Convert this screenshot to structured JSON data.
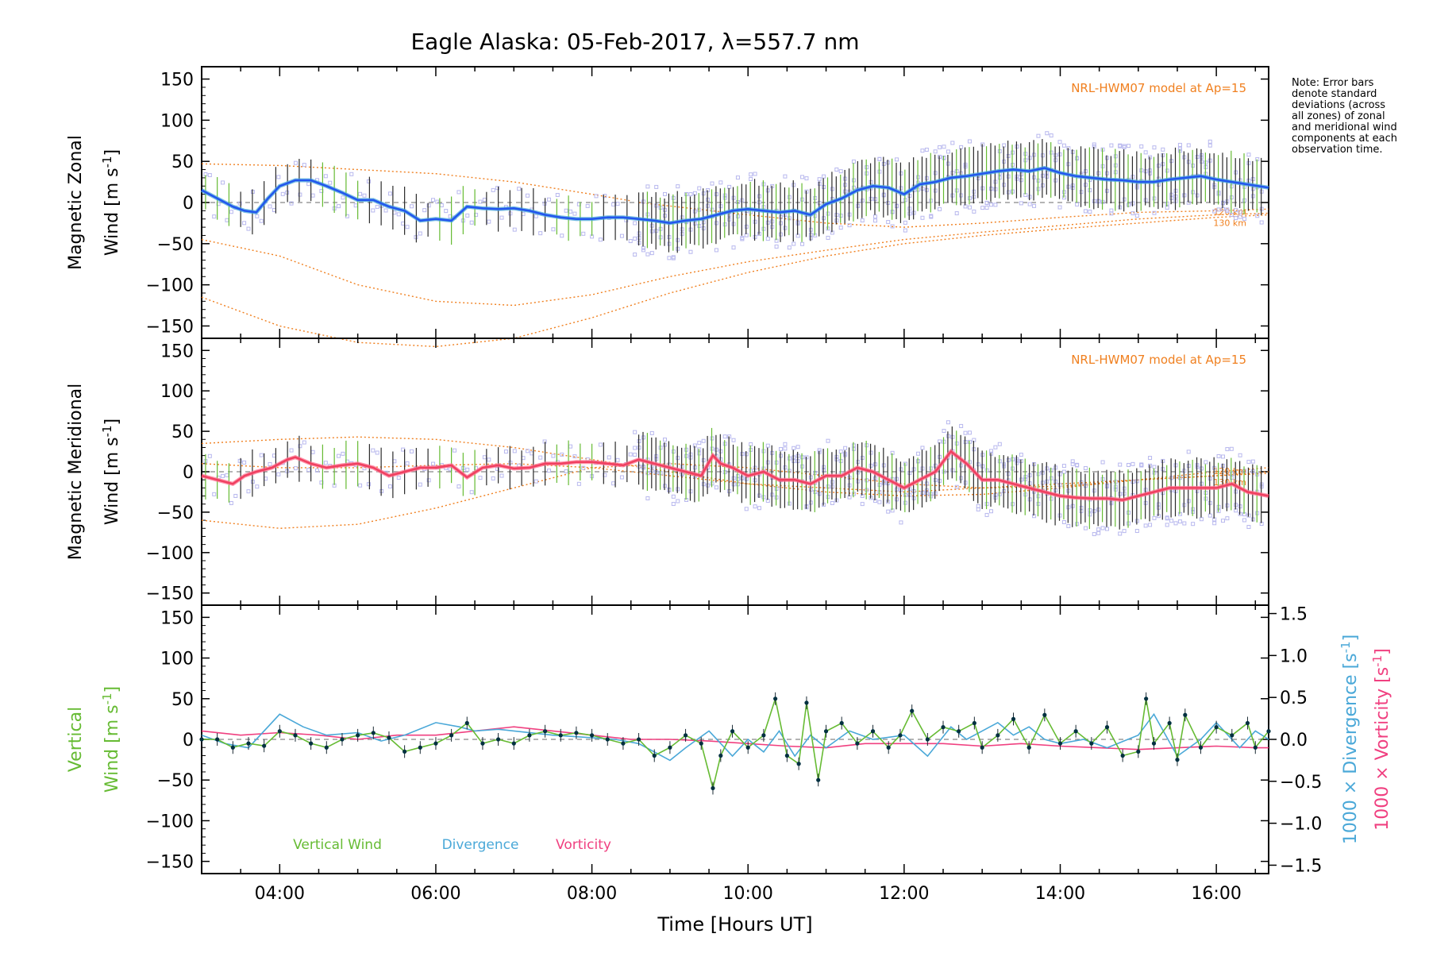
{
  "chart_data": {
    "type": "line",
    "title": "Eagle Alaska: 05-Feb-2017, λ=557.7 nm",
    "xlabel": "Time [Hours UT]",
    "x_ticks": [
      "04:00",
      "06:00",
      "08:00",
      "10:00",
      "12:00",
      "14:00",
      "16:00"
    ],
    "xlim": [
      3.0,
      16.67
    ],
    "note": "Note: Error bars denote standard deviations (across all zones) of zonal and meridional wind components at each observation time.",
    "panels": [
      {
        "id": "zonal",
        "ylabel_line1": "Magnetic Zonal",
        "ylabel_line2": "Wind [m s",
        "ylabel_unit_sup": "-1",
        "ylabel_unit_close": "]",
        "ylim": [
          -165,
          165
        ],
        "y_ticks": [
          -150,
          -100,
          -50,
          0,
          50,
          100,
          150
        ],
        "model_label": "NRL-HWM07 model at Ap=15",
        "model_altitudes": [
          "120 km",
          "130 km"
        ],
        "colors": {
          "series": "#2255ee",
          "smooth": "#4aa8d8",
          "model": "#f08020",
          "samples": "#b8b8ee",
          "errorbar": "#333333"
        },
        "series": [
          {
            "name": "Zonal wind",
            "x": [
              3.0,
              3.2,
              3.4,
              3.55,
              3.7,
              3.85,
              4.0,
              4.2,
              4.4,
              4.6,
              4.8,
              5.0,
              5.2,
              5.4,
              5.6,
              5.8,
              6.0,
              6.2,
              6.4,
              6.6,
              6.8,
              7.0,
              7.2,
              7.4,
              7.6,
              7.8,
              8.0,
              8.2,
              8.4,
              8.6,
              8.8,
              9.0,
              9.2,
              9.4,
              9.6,
              9.8,
              10.0,
              10.2,
              10.4,
              10.6,
              10.8,
              11.0,
              11.2,
              11.4,
              11.6,
              11.8,
              12.0,
              12.2,
              12.4,
              12.6,
              12.8,
              13.0,
              13.2,
              13.4,
              13.6,
              13.8,
              14.0,
              14.2,
              14.4,
              14.6,
              14.8,
              15.0,
              15.2,
              15.4,
              15.6,
              15.8,
              16.0,
              16.2,
              16.4,
              16.67
            ],
            "y": [
              15,
              5,
              -5,
              -10,
              -12,
              5,
              20,
              27,
              27,
              20,
              12,
              3,
              3,
              -5,
              -10,
              -22,
              -20,
              -22,
              -5,
              -7,
              -8,
              -7,
              -10,
              -15,
              -18,
              -20,
              -20,
              -18,
              -18,
              -20,
              -22,
              -25,
              -22,
              -20,
              -15,
              -10,
              -8,
              -10,
              -12,
              -10,
              -15,
              -2,
              5,
              15,
              20,
              18,
              10,
              22,
              25,
              30,
              32,
              35,
              38,
              40,
              38,
              42,
              36,
              32,
              30,
              28,
              27,
              25,
              25,
              28,
              30,
              32,
              28,
              25,
              22,
              18
            ]
          }
        ],
        "model_curves": [
          {
            "name": "model upper",
            "x": [
              3,
              4,
              5,
              6,
              7,
              8,
              8.5
            ],
            "y": [
              47,
              45,
              40,
              35,
              25,
              10,
              2
            ]
          },
          {
            "name": "model lower",
            "x": [
              3,
              4,
              5,
              6,
              7,
              8,
              9,
              10,
              11,
              12,
              13,
              14,
              15,
              16,
              16.67
            ],
            "y": [
              -115,
              -150,
              -170,
              -175,
              -165,
              -140,
              -110,
              -85,
              -65,
              -50,
              -40,
              -32,
              -25,
              -18,
              -15
            ]
          },
          {
            "name": "model 130 km",
            "x": [
              3,
              4,
              5,
              6,
              7,
              8,
              9,
              10,
              11,
              12,
              13,
              14,
              15,
              16,
              16.67
            ],
            "y": [
              -45,
              -65,
              -100,
              -120,
              -125,
              -112,
              -90,
              -72,
              -58,
              -45,
              -36,
              -28,
              -20,
              -15,
              -13
            ]
          },
          {
            "name": "model 120 km",
            "x": [
              8.6,
              10,
              11,
              12,
              13,
              14,
              15,
              16,
              16.67
            ],
            "y": [
              0,
              -15,
              -25,
              -30,
              -25,
              -18,
              -12,
              -10,
              -8
            ]
          }
        ]
      },
      {
        "id": "meridional",
        "ylabel_line1": "Magnetic Meridional",
        "ylabel_line2": "Wind [m s",
        "ylabel_unit_sup": "-1",
        "ylabel_unit_close": "]",
        "ylim": [
          -165,
          165
        ],
        "y_ticks": [
          -150,
          -100,
          -50,
          0,
          50,
          100,
          150
        ],
        "model_label": "NRL-HWM07 model at Ap=15",
        "model_altitudes": [
          "120 km",
          "130 km"
        ],
        "colors": {
          "series": "#f04060",
          "smooth": "#ff7090",
          "model": "#f08020",
          "samples": "#b8b8ee",
          "errorbar": "#333333"
        },
        "series": [
          {
            "name": "Meridional wind",
            "x": [
              3.0,
              3.2,
              3.4,
              3.55,
              3.7,
              3.9,
              4.1,
              4.2,
              4.4,
              4.6,
              4.8,
              5.0,
              5.2,
              5.4,
              5.6,
              5.8,
              6.0,
              6.2,
              6.4,
              6.6,
              6.8,
              7.0,
              7.2,
              7.4,
              7.6,
              7.8,
              8.0,
              8.2,
              8.4,
              8.6,
              8.8,
              9.0,
              9.2,
              9.4,
              9.55,
              9.65,
              9.8,
              10.0,
              10.2,
              10.4,
              10.6,
              10.8,
              11.0,
              11.2,
              11.4,
              11.6,
              11.8,
              12.0,
              12.2,
              12.4,
              12.6,
              12.8,
              13.0,
              13.2,
              13.4,
              13.6,
              13.8,
              14.0,
              14.2,
              14.4,
              14.6,
              14.8,
              15.0,
              15.2,
              15.4,
              15.6,
              15.8,
              16.0,
              16.2,
              16.4,
              16.67
            ],
            "y": [
              -5,
              -10,
              -15,
              -5,
              0,
              5,
              15,
              18,
              10,
              5,
              8,
              10,
              5,
              -5,
              0,
              5,
              5,
              8,
              -7,
              5,
              8,
              4,
              5,
              10,
              10,
              12,
              12,
              10,
              8,
              15,
              10,
              5,
              0,
              -5,
              20,
              10,
              5,
              -5,
              0,
              -10,
              -10,
              -15,
              -5,
              -5,
              5,
              0,
              -10,
              -20,
              -10,
              0,
              25,
              10,
              -10,
              -10,
              -15,
              -20,
              -25,
              -30,
              -32,
              -33,
              -33,
              -35,
              -30,
              -25,
              -20,
              -20,
              -20,
              -20,
              -15,
              -25,
              -30
            ]
          }
        ],
        "model_curves": [
          {
            "name": "model upper",
            "x": [
              3,
              4,
              5,
              6,
              7,
              8,
              9,
              10,
              11,
              12,
              13,
              14,
              15,
              16,
              16.67
            ],
            "y": [
              35,
              40,
              43,
              40,
              30,
              15,
              0,
              -15,
              -25,
              -30,
              -28,
              -20,
              -10,
              0,
              5
            ]
          },
          {
            "name": "model lower",
            "x": [
              3,
              4,
              5,
              6,
              7,
              8,
              9,
              10,
              11,
              12,
              13,
              14,
              15,
              16,
              16.67
            ],
            "y": [
              -60,
              -70,
              -65,
              -45,
              -20,
              5,
              10,
              5,
              -5,
              -15,
              -20,
              -18,
              -10,
              -5,
              -2
            ]
          },
          {
            "name": "model near",
            "x": [
              3,
              4,
              5,
              6,
              7,
              8,
              9,
              10,
              11,
              12,
              13,
              14,
              15,
              16,
              16.67
            ],
            "y": [
              10,
              5,
              5,
              8,
              10,
              5,
              -5,
              -15,
              -20,
              -25,
              -20,
              -15,
              -10,
              -5,
              0
            ]
          }
        ]
      },
      {
        "id": "vertical",
        "ylabel_line1": "Vertical",
        "ylabel_line2": "Wind [m s",
        "ylabel_unit_sup": "-1",
        "ylabel_unit_close": "]",
        "ylim": [
          -165,
          165
        ],
        "y_ticks": [
          -150,
          -100,
          -50,
          0,
          50,
          100,
          150
        ],
        "right_ylabel_div": "1000 × Divergence [s",
        "right_ylabel_vort": "1000 × Vorticity [s",
        "right_ylabel_sup": "-1",
        "right_ylabel_close": "]",
        "right_ylim": [
          -1.6,
          1.6
        ],
        "right_ticks": [
          "-1.5",
          "-1.0",
          "-0.5",
          "0.0",
          "0.5",
          "1.0",
          "1.5"
        ],
        "right_tick_values": [
          -1.5,
          -1.0,
          -0.5,
          0.0,
          0.5,
          1.0,
          1.5
        ],
        "legend": [
          "Vertical Wind",
          "Divergence",
          "Vorticity"
        ],
        "colors": {
          "vertical": "#66bb33",
          "divergence": "#4aa8d8",
          "vorticity": "#f04080",
          "point": "#003040"
        },
        "series": [
          {
            "name": "Vertical Wind",
            "x": [
              3.0,
              3.2,
              3.4,
              3.6,
              3.8,
              4.0,
              4.2,
              4.4,
              4.6,
              4.8,
              5.0,
              5.2,
              5.4,
              5.6,
              5.8,
              6.0,
              6.2,
              6.4,
              6.6,
              6.8,
              7.0,
              7.2,
              7.4,
              7.6,
              7.8,
              8.0,
              8.2,
              8.4,
              8.6,
              8.8,
              9.0,
              9.2,
              9.4,
              9.55,
              9.65,
              9.8,
              10.0,
              10.2,
              10.35,
              10.5,
              10.65,
              10.75,
              10.9,
              11.0,
              11.2,
              11.4,
              11.6,
              11.8,
              11.95,
              12.1,
              12.3,
              12.5,
              12.7,
              12.9,
              13.0,
              13.2,
              13.4,
              13.6,
              13.8,
              14.0,
              14.2,
              14.4,
              14.6,
              14.8,
              15.0,
              15.1,
              15.2,
              15.4,
              15.5,
              15.6,
              15.8,
              16.0,
              16.2,
              16.4,
              16.5,
              16.67
            ],
            "y": [
              0,
              0,
              -10,
              -5,
              -8,
              10,
              5,
              -5,
              -10,
              0,
              5,
              8,
              2,
              -15,
              -10,
              -5,
              5,
              20,
              -5,
              0,
              -5,
              5,
              10,
              5,
              8,
              5,
              0,
              -5,
              0,
              -20,
              -10,
              5,
              -5,
              -60,
              -20,
              10,
              -10,
              5,
              50,
              -20,
              -30,
              45,
              -50,
              10,
              20,
              -5,
              10,
              -10,
              5,
              35,
              0,
              15,
              10,
              20,
              -10,
              5,
              25,
              -10,
              30,
              -5,
              10,
              -5,
              15,
              -20,
              -15,
              50,
              -5,
              20,
              -25,
              30,
              -10,
              15,
              5,
              20,
              -10,
              10
            ]
          },
          {
            "name": "Divergence",
            "x": [
              3,
              3.3,
              3.6,
              4.0,
              4.3,
              4.6,
              5.0,
              5.3,
              5.6,
              6.0,
              6.3,
              6.5,
              6.8,
              7.0,
              7.5,
              8.0,
              8.3,
              8.6,
              9.0,
              9.2,
              9.5,
              9.8,
              10.0,
              10.2,
              10.4,
              10.6,
              10.8,
              11.0,
              11.3,
              11.6,
              12.0,
              12.3,
              12.6,
              12.8,
              13.0,
              13.2,
              13.4,
              13.6,
              13.8,
              14.0,
              14.3,
              14.6,
              15.0,
              15.2,
              15.5,
              15.8,
              16.0,
              16.3,
              16.5,
              16.67
            ],
            "y": [
              0.05,
              -0.05,
              -0.1,
              0.3,
              0.15,
              0.05,
              0.08,
              -0.02,
              0.05,
              0.2,
              0.15,
              0.1,
              0.12,
              0.1,
              0.05,
              0.02,
              0.0,
              -0.05,
              -0.25,
              -0.1,
              0.1,
              -0.2,
              0.0,
              -0.15,
              0.1,
              -0.2,
              0.05,
              -0.1,
              0.1,
              0.0,
              0.05,
              -0.2,
              0.15,
              0.0,
              0.1,
              0.2,
              0.05,
              0.15,
              0.0,
              -0.05,
              0.0,
              -0.1,
              0.05,
              0.3,
              -0.2,
              0.0,
              0.2,
              -0.1,
              0.1,
              0.0
            ]
          },
          {
            "name": "Vorticity",
            "x": [
              3,
              3.5,
              4.0,
              4.5,
              5.0,
              5.5,
              6.0,
              6.5,
              7.0,
              7.5,
              8.0,
              8.5,
              9.0,
              9.5,
              10.0,
              10.5,
              11.0,
              11.5,
              12.0,
              12.5,
              13.0,
              13.5,
              14.0,
              14.5,
              15.0,
              15.5,
              16.0,
              16.5,
              16.67
            ],
            "y": [
              0.1,
              0.05,
              0.08,
              0.05,
              0.0,
              0.05,
              0.05,
              0.1,
              0.15,
              0.1,
              0.05,
              0.0,
              0.0,
              -0.02,
              -0.05,
              -0.08,
              -0.1,
              -0.05,
              -0.05,
              -0.05,
              -0.08,
              -0.05,
              -0.08,
              -0.1,
              -0.12,
              -0.1,
              -0.08,
              -0.1,
              -0.1
            ]
          }
        ]
      }
    ]
  }
}
